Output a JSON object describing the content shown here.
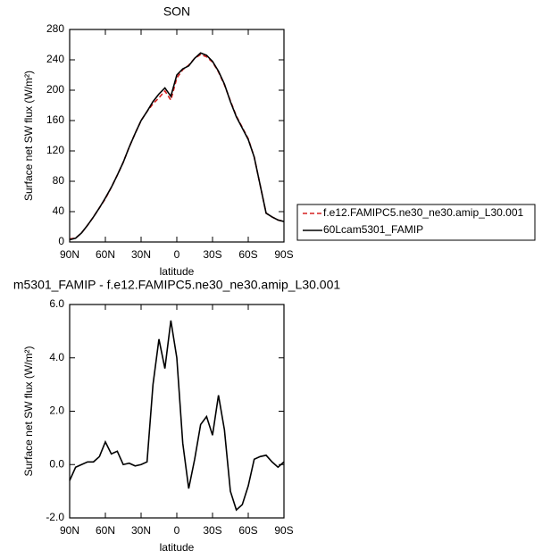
{
  "chart_data": [
    {
      "type": "line",
      "title": "SON",
      "x_label": "latitude",
      "y_label": "Surface net SW flux (W/m²)",
      "x": [
        90,
        85,
        80,
        75,
        70,
        65,
        60,
        55,
        50,
        45,
        40,
        35,
        30,
        25,
        20,
        15,
        10,
        5,
        0,
        -5,
        -10,
        -15,
        -20,
        -25,
        -30,
        -35,
        -40,
        -45,
        -50,
        -55,
        -60,
        -65,
        -70,
        -75,
        -80,
        -85,
        -90
      ],
      "series": [
        {
          "name": "f.e12.FAMIPC5.ne30_ne30.amip_L30.001",
          "color": "#d62020",
          "style": "dashed",
          "values": [
            4,
            5,
            12,
            22,
            33,
            45,
            57,
            72,
            88,
            105,
            125,
            143,
            160,
            172,
            182,
            190,
            199,
            187,
            216,
            227,
            233,
            242,
            247,
            244,
            237,
            224,
            207,
            186,
            166,
            151,
            136,
            112,
            75,
            38,
            33,
            29,
            27
          ]
        },
        {
          "name": "60Lcam5301_FAMIP",
          "color": "#000000",
          "style": "solid",
          "values": [
            3,
            5,
            12,
            22,
            33,
            45,
            58,
            72,
            88,
            105,
            125,
            143,
            160,
            172,
            185,
            195,
            203,
            192,
            220,
            228,
            232,
            242,
            249,
            246,
            238,
            225,
            208,
            185,
            165,
            150,
            135,
            112,
            75,
            38,
            33,
            29,
            27
          ]
        }
      ],
      "xlim": [
        90,
        -90
      ],
      "xticks": [
        {
          "value": 90,
          "label": "90N"
        },
        {
          "value": 60,
          "label": "60N"
        },
        {
          "value": 30,
          "label": "30N"
        },
        0,
        {
          "value": -30,
          "label": "30S"
        },
        {
          "value": -60,
          "label": "60S"
        },
        {
          "value": -90,
          "label": "90S"
        }
      ],
      "ylim": [
        0,
        280
      ],
      "yticks": [
        0,
        40,
        80,
        120,
        160,
        200,
        240,
        280
      ],
      "legend": "right"
    },
    {
      "type": "line",
      "title": "m5301_FAMIP - f.e12.FAMIPC5.ne30_ne30.amip_L30.001",
      "x_label": "latitude",
      "y_label": "Surface net SW flux (W/m²)",
      "x": [
        90,
        85,
        80,
        75,
        70,
        65,
        60,
        55,
        50,
        45,
        40,
        35,
        30,
        25,
        20,
        15,
        10,
        5,
        0,
        -5,
        -10,
        -15,
        -20,
        -25,
        -30,
        -35,
        -40,
        -45,
        -50,
        -55,
        -60,
        -65,
        -70,
        -75,
        -80,
        -85,
        -90
      ],
      "series": [
        {
          "color": "#000000",
          "style": "solid",
          "values": [
            -0.6,
            -0.1,
            0.0,
            0.1,
            0.1,
            0.3,
            0.85,
            0.4,
            0.5,
            0.0,
            0.05,
            -0.05,
            0.0,
            0.1,
            3.0,
            4.7,
            3.6,
            5.4,
            4.0,
            0.8,
            -0.9,
            0.2,
            1.5,
            1.8,
            1.1,
            2.6,
            1.3,
            -1.0,
            -1.7,
            -1.5,
            -0.8,
            0.2,
            0.3,
            0.35,
            0.1,
            -0.1,
            0.1
          ]
        }
      ],
      "xlim": [
        90,
        -90
      ],
      "xticks": [
        {
          "value": 90,
          "label": "90N"
        },
        {
          "value": 60,
          "label": "60N"
        },
        {
          "value": 30,
          "label": "30N"
        },
        0,
        {
          "value": -30,
          "label": "30S"
        },
        {
          "value": -60,
          "label": "60S"
        },
        {
          "value": -90,
          "label": "90S"
        }
      ],
      "ylim": [
        -2,
        6
      ],
      "yticks": [
        {
          "value": -2,
          "label": "-2.0"
        },
        {
          "value": 0,
          "label": "0.0"
        },
        {
          "value": 2,
          "label": "2.0"
        },
        {
          "value": 4,
          "label": "4.0"
        },
        {
          "value": 6,
          "label": "6.0"
        }
      ]
    }
  ]
}
